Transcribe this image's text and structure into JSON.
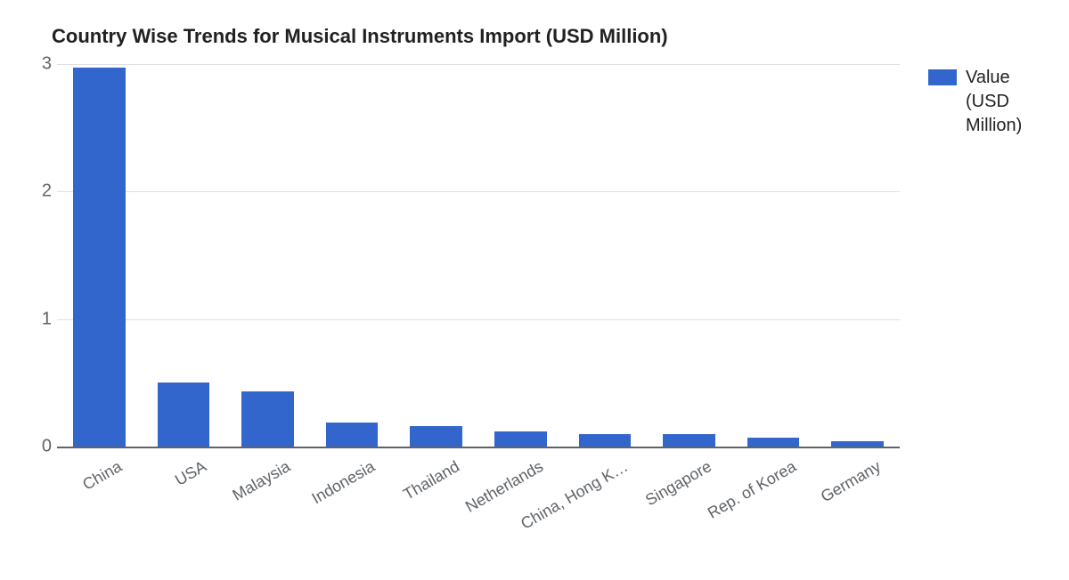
{
  "chart": {
    "type": "bar",
    "title": "Country Wise Trends for Musical Instruments Import (USD Million)",
    "title_fontsize": 22,
    "title_fontweight": "bold",
    "title_color": "#212121",
    "categories": [
      "China",
      "USA",
      "Malaysia",
      "Indonesia",
      "Thailand",
      "Netherlands",
      "China, Hong K…",
      "Singapore",
      "Rep. of Korea",
      "Germany"
    ],
    "values": [
      2.97,
      0.5,
      0.43,
      0.19,
      0.16,
      0.12,
      0.1,
      0.1,
      0.07,
      0.04
    ],
    "bar_color": "#3366cc",
    "bar_width_ratio": 0.62,
    "background_color": "#ffffff",
    "grid_color": "#e0e0e0",
    "axis_line_color": "#5f6368",
    "ymin": 0,
    "ymax": 3,
    "yticks": [
      0,
      1,
      2,
      3
    ],
    "ytick_fontsize": 20,
    "ytick_color": "#5f6368",
    "xlabel_fontsize": 18,
    "xlabel_color": "#5f6368",
    "xlabel_rotation_deg": -30,
    "legend": {
      "label": "Value (USD Million)",
      "swatch_color": "#3366cc",
      "label_fontsize": 20,
      "label_color": "#212121"
    }
  }
}
